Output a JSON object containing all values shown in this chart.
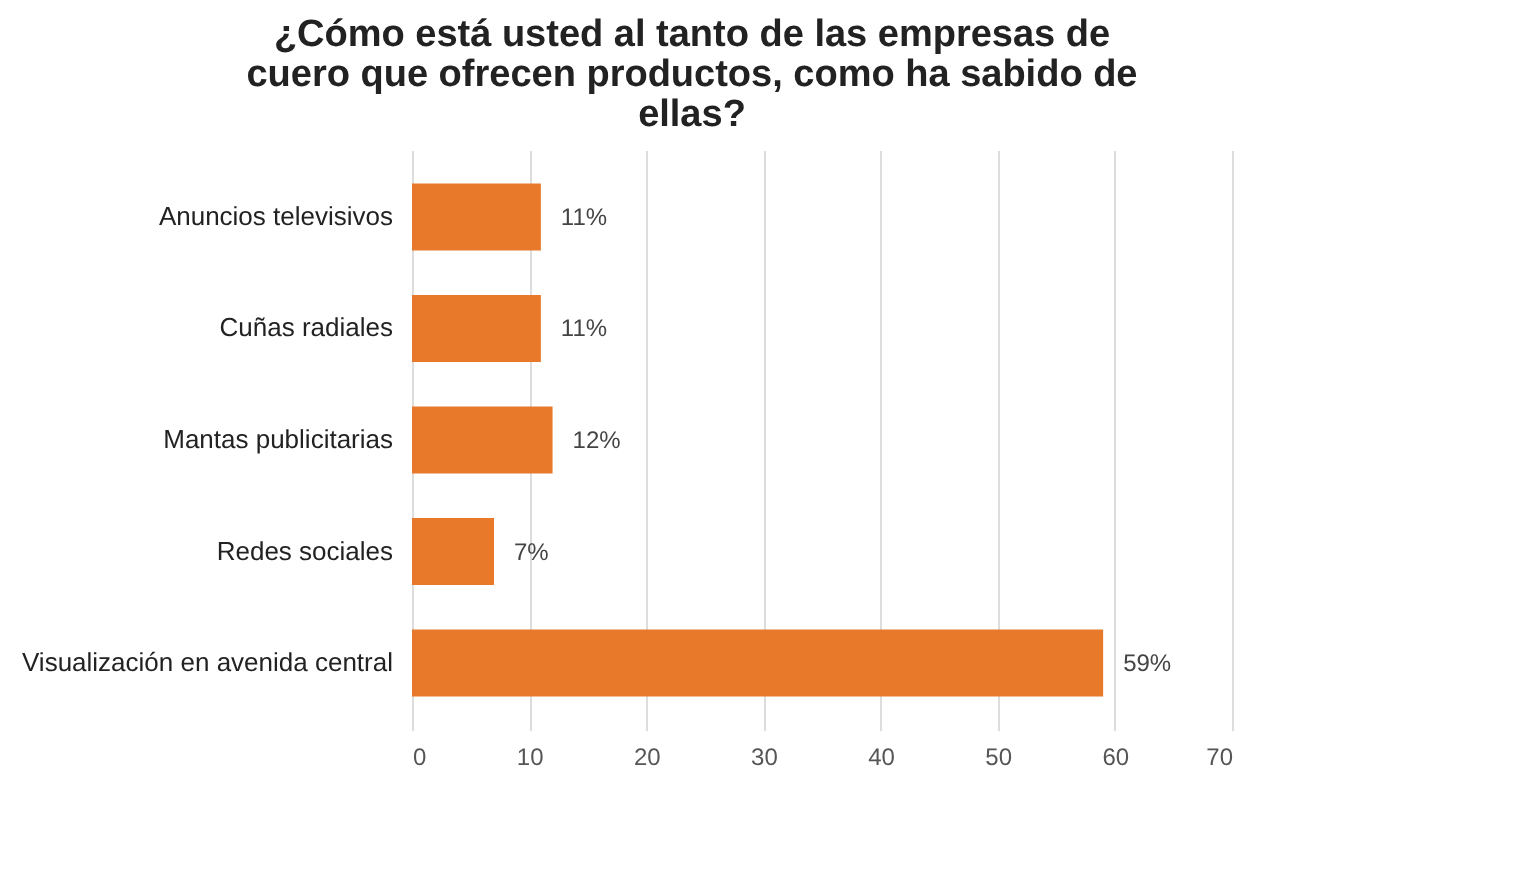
{
  "chart_data": {
    "type": "bar",
    "orientation": "horizontal",
    "title": "¿Cómo está usted al tanto de las empresas de cuero que ofrecen productos, como ha sabido de ellas?",
    "categories": [
      "Anuncios televisivos",
      "Cuñas radiales",
      "Mantas publicitarias",
      "Redes sociales",
      "Visualización en avenida central"
    ],
    "values": [
      11,
      11,
      12,
      7,
      59
    ],
    "value_labels": [
      "11%",
      "11%",
      "12%",
      "7%",
      "59%"
    ],
    "color": "#e8792b",
    "xlim": [
      0,
      70
    ],
    "xticks": [
      0,
      10,
      20,
      30,
      40,
      50,
      60,
      70
    ],
    "grid": "x"
  }
}
